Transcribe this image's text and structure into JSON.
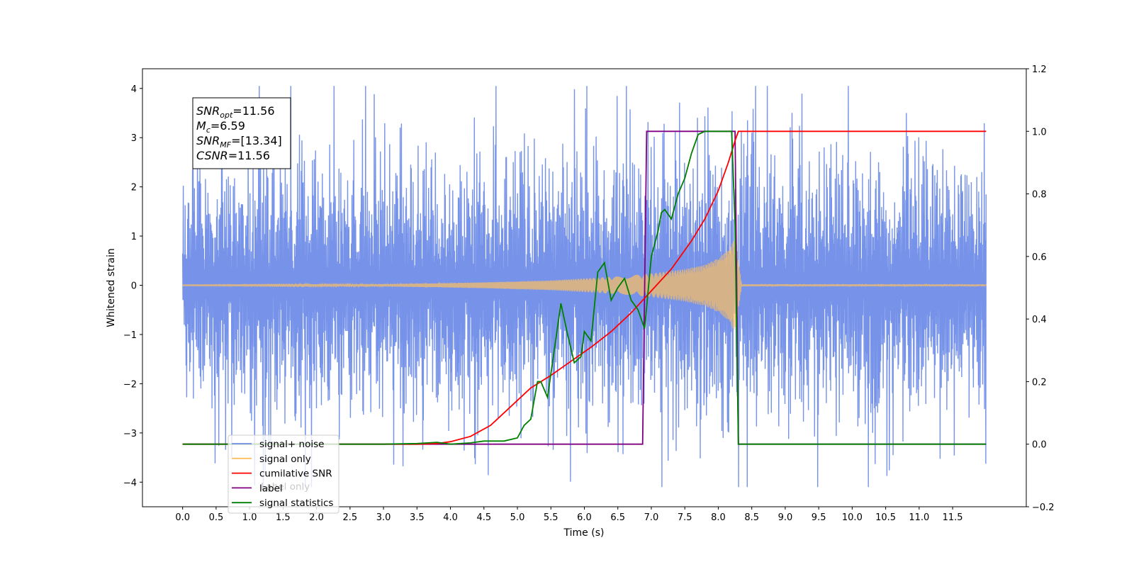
{
  "chart_data": {
    "type": "line",
    "xlabel": "Time (s)",
    "ylabel": "Whitened strain",
    "xlim": [
      -0.6,
      12.6
    ],
    "ylim": [
      -4.5,
      4.4
    ],
    "y2lim": [
      -0.2,
      1.2
    ],
    "x_ticks": [
      0.0,
      0.5,
      1.0,
      1.5,
      2.0,
      2.5,
      3.0,
      3.5,
      4.0,
      4.5,
      5.0,
      5.5,
      6.0,
      6.5,
      7.0,
      7.5,
      8.0,
      8.5,
      9.0,
      9.5,
      10.0,
      10.5,
      11.0,
      11.5
    ],
    "x_tick_labels": [
      "0.0",
      "0.5",
      "1.0",
      "1.5",
      "2.0",
      "2.5",
      "3.0",
      "3.5",
      "4.0",
      "4.5",
      "5.0",
      "5.5",
      "6.0",
      "6.5",
      "7.0",
      "7.5",
      "8.0",
      "8.5",
      "9.0",
      "9.5",
      "10.0",
      "10.5",
      "11.0",
      "11.5"
    ],
    "y_ticks": [
      -4,
      -3,
      -2,
      -1,
      0,
      1,
      2,
      3,
      4
    ],
    "y_tick_labels": [
      "−4",
      "−3",
      "−2",
      "−1",
      "0",
      "1",
      "2",
      "3",
      "4"
    ],
    "y2_ticks": [
      -0.2,
      0.0,
      0.2,
      0.4,
      0.6,
      0.8,
      1.0,
      1.2
    ],
    "y2_tick_labels": [
      "−0.2",
      "0.0",
      "0.2",
      "0.4",
      "0.6",
      "0.8",
      "1.0",
      "1.2"
    ],
    "grid": false,
    "legend_position": "bottom-left",
    "series": [
      {
        "name": "signal+ noise",
        "axis": "left",
        "color": "#6f8de8",
        "description_values": {
          "x_start": 0.0,
          "x_end": 12.0,
          "typical_amplitude": 1.7,
          "max": 4.05,
          "min": -4.1
        }
      },
      {
        "name": "signal only",
        "axis": "left",
        "color": "#ffbf60",
        "envelope": {
          "x": [
            0.0,
            3.0,
            4.5,
            5.5,
            6.5,
            7.0,
            7.5,
            7.8,
            8.0,
            8.15,
            8.25,
            8.3,
            8.35,
            12.0
          ],
          "amplitude": [
            0.01,
            0.02,
            0.06,
            0.1,
            0.18,
            0.24,
            0.33,
            0.42,
            0.55,
            0.72,
            0.95,
            0.5,
            0.02,
            0.02
          ]
        }
      },
      {
        "name": "cumilative SNR",
        "axis": "right",
        "color": "#ff0000",
        "x": [
          0.0,
          3.5,
          3.8,
          4.0,
          4.3,
          4.6,
          4.9,
          5.2,
          5.5,
          5.8,
          6.1,
          6.4,
          6.7,
          7.0,
          7.3,
          7.6,
          7.8,
          8.0,
          8.15,
          8.25,
          8.3,
          12.0
        ],
        "values": [
          0.0,
          0.0,
          0.002,
          0.008,
          0.025,
          0.06,
          0.12,
          0.18,
          0.22,
          0.265,
          0.31,
          0.36,
          0.42,
          0.49,
          0.56,
          0.65,
          0.72,
          0.81,
          0.9,
          0.97,
          1.0,
          1.0
        ]
      },
      {
        "name": "label",
        "axis": "right",
        "color": "#800080",
        "x": [
          0.0,
          6.87,
          6.93,
          8.25,
          8.3,
          12.0
        ],
        "values": [
          0.0,
          0.0,
          1.0,
          1.0,
          0.0,
          0.0
        ]
      },
      {
        "name": "signal statistics",
        "axis": "right",
        "color": "#008000",
        "x": [
          0.0,
          3.0,
          3.5,
          3.8,
          4.0,
          4.3,
          4.5,
          4.8,
          5.0,
          5.1,
          5.2,
          5.3,
          5.35,
          5.45,
          5.55,
          5.65,
          5.75,
          5.85,
          5.95,
          6.0,
          6.1,
          6.2,
          6.3,
          6.4,
          6.5,
          6.6,
          6.7,
          6.8,
          6.9,
          7.0,
          7.1,
          7.15,
          7.2,
          7.3,
          7.4,
          7.5,
          7.6,
          7.7,
          7.8,
          7.9,
          8.0,
          8.1,
          8.2,
          8.25,
          8.3,
          8.35,
          12.0
        ],
        "values": [
          0.0,
          0.0,
          0.002,
          0.006,
          0.0,
          0.004,
          0.01,
          0.01,
          0.02,
          0.06,
          0.08,
          0.2,
          0.2,
          0.15,
          0.3,
          0.45,
          0.35,
          0.26,
          0.28,
          0.36,
          0.33,
          0.55,
          0.58,
          0.46,
          0.5,
          0.53,
          0.46,
          0.43,
          0.37,
          0.6,
          0.68,
          0.74,
          0.75,
          0.72,
          0.8,
          0.85,
          0.93,
          0.99,
          1.0,
          1.0,
          1.0,
          1.0,
          1.0,
          0.7,
          0.0,
          0.0,
          0.0
        ]
      }
    ],
    "annotation_lines": [
      "=11.56",
      "=6.59",
      "=[13.34]",
      "=11.56"
    ],
    "annotation_symbols": [
      {
        "base": "SNR",
        "sub": "opt"
      },
      {
        "base": "M",
        "sub": "c"
      },
      {
        "base": "SNR",
        "sub": "MF"
      },
      {
        "base": "CSNR",
        "sub": ""
      }
    ],
    "legend_entries": [
      "signal+ noise",
      "signal only",
      "cumilative SNR",
      "label",
      "signal statistics"
    ],
    "legend_overlap_text": [
      "Label only"
    ]
  }
}
